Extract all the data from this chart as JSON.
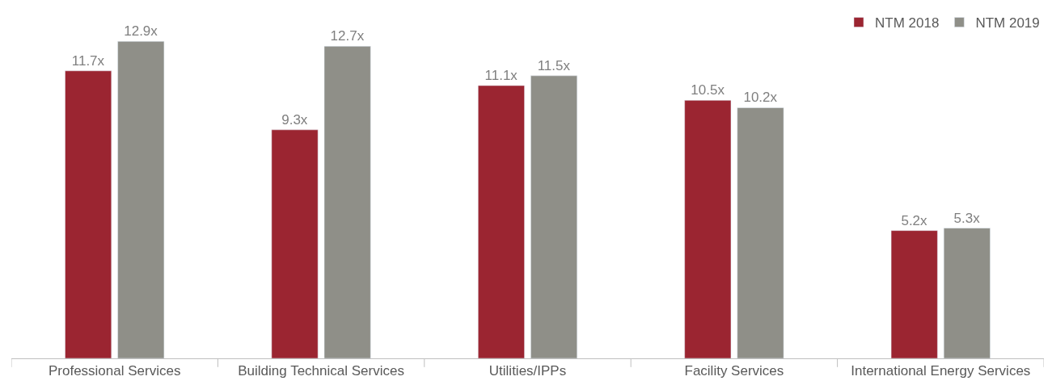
{
  "chart_data": {
    "type": "bar",
    "categories": [
      "Professional Services",
      "Building Technical Services",
      "Utilities/IPPs",
      "Facility Services",
      "International Energy Services"
    ],
    "series": [
      {
        "name": "NTM 2018",
        "color": "#9b2531",
        "values": [
          11.7,
          9.3,
          11.1,
          10.5,
          5.2
        ],
        "value_labels": [
          "11.7x",
          "9.3x",
          "11.1x",
          "10.5x",
          "5.2x"
        ]
      },
      {
        "name": "NTM 2019",
        "color": "#8f8f88",
        "values": [
          12.9,
          12.7,
          11.5,
          10.2,
          5.3
        ],
        "value_labels": [
          "12.9x",
          "12.7x",
          "11.5x",
          "10.2x",
          "5.3x"
        ]
      }
    ],
    "legend": "top right",
    "tick_labels": "x"
  }
}
